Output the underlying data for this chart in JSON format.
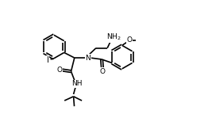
{
  "bg_color": "#ffffff",
  "line_color": "#000000",
  "lw": 1.2,
  "fs": 6.5,
  "xlim": [
    0,
    10
  ],
  "ylim": [
    0,
    7
  ],
  "r": 0.62
}
